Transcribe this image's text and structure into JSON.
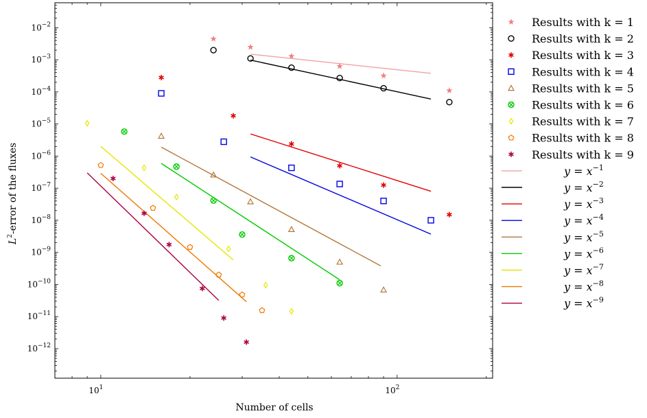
{
  "chart_data": {
    "type": "scatter",
    "xscale": "log",
    "yscale": "log",
    "xlim": [
      7.0,
      210.0
    ],
    "ylim": [
      1.2e-13,
      0.06
    ],
    "xlabel": "Number of cells",
    "ylabel": "L2-error of the fluxes",
    "ylabel_parts": {
      "L": "L",
      "sup": "2",
      "rest": "-error of the fluxes"
    },
    "xticks": [
      {
        "value": 10,
        "base": "10",
        "exp": "1"
      },
      {
        "value": 100,
        "base": "10",
        "exp": "2"
      }
    ],
    "yticks": [
      {
        "value": 1e-12,
        "base": "10",
        "exp": "−12"
      },
      {
        "value": 1e-11,
        "base": "10",
        "exp": "−11"
      },
      {
        "value": 1e-10,
        "base": "10",
        "exp": "−10"
      },
      {
        "value": 1e-09,
        "base": "10",
        "exp": "−9"
      },
      {
        "value": 1e-08,
        "base": "10",
        "exp": "−8"
      },
      {
        "value": 1e-07,
        "base": "10",
        "exp": "−7"
      },
      {
        "value": 1e-06,
        "base": "10",
        "exp": "−6"
      },
      {
        "value": 1e-05,
        "base": "10",
        "exp": "−5"
      },
      {
        "value": 0.0001,
        "base": "10",
        "exp": "−4"
      },
      {
        "value": 0.001,
        "base": "10",
        "exp": "−3"
      },
      {
        "value": 0.01,
        "base": "10",
        "exp": "−2"
      }
    ],
    "legend_position": "outside-right",
    "series": [
      {
        "name": "Results with k = 1",
        "marker": "star",
        "color": "#f08080",
        "points": [
          [
            24,
            0.0045
          ],
          [
            32,
            0.0025
          ],
          [
            44,
            0.0013
          ],
          [
            64,
            0.00063
          ],
          [
            90,
            0.00032
          ],
          [
            150,
            0.00011
          ]
        ]
      },
      {
        "name": "Results with k = 2",
        "marker": "circle",
        "color": "#000000",
        "points": [
          [
            24,
            0.002
          ],
          [
            32,
            0.0011
          ],
          [
            44,
            0.00057
          ],
          [
            64,
            0.00027
          ],
          [
            90,
            0.00013
          ],
          [
            150,
            4.8e-05
          ]
        ]
      },
      {
        "name": "Results with k = 3",
        "marker": "asterisk",
        "color": "#e00000",
        "points": [
          [
            16,
            0.00028
          ],
          [
            28,
            1.8e-05
          ],
          [
            44,
            2.4e-06
          ],
          [
            64,
            5e-07
          ],
          [
            90,
            1.25e-07
          ],
          [
            150,
            1.5e-08
          ]
        ]
      },
      {
        "name": "Results with k = 4",
        "marker": "square",
        "color": "#0000e0",
        "points": [
          [
            16,
            9e-05
          ],
          [
            26,
            2.8e-06
          ],
          [
            44,
            4.3e-07
          ],
          [
            64,
            1.35e-07
          ],
          [
            90,
            4e-08
          ],
          [
            130,
            1e-08
          ]
        ]
      },
      {
        "name": "Results with k = 5",
        "marker": "triangle",
        "color": "#b5773a",
        "points": [
          [
            16,
            4.2e-06
          ],
          [
            24,
            2.6e-07
          ],
          [
            32,
            3.8e-08
          ],
          [
            44,
            5.2e-09
          ],
          [
            64,
            5e-10
          ],
          [
            90,
            6.8e-11
          ]
        ]
      },
      {
        "name": "Results with k = 6",
        "marker": "otimes",
        "color": "#00cc00",
        "points": [
          [
            12,
            5.8e-06
          ],
          [
            18,
            4.7e-07
          ],
          [
            24,
            4.1e-08
          ],
          [
            30,
            3.6e-09
          ],
          [
            44,
            6.6e-10
          ],
          [
            64,
            1.1e-10
          ]
        ]
      },
      {
        "name": "Results with k = 7",
        "marker": "diamond",
        "color": "#e6e600",
        "points": [
          [
            9,
            1.05e-05
          ],
          [
            14,
            4.3e-07
          ],
          [
            18,
            5.3e-08
          ],
          [
            27,
            1.3e-09
          ],
          [
            36,
            9.5e-11
          ],
          [
            44,
            1.45e-11
          ]
        ]
      },
      {
        "name": "Results with k = 8",
        "marker": "pentagon",
        "color": "#f07800",
        "points": [
          [
            10,
            5.2e-07
          ],
          [
            15,
            2.4e-08
          ],
          [
            20,
            1.45e-09
          ],
          [
            25,
            2e-10
          ],
          [
            30,
            4.8e-11
          ],
          [
            35,
            1.55e-11
          ]
        ]
      },
      {
        "name": "Results with k = 9",
        "marker": "asterisk",
        "color": "#aa0044",
        "points": [
          [
            11,
            2e-07
          ],
          [
            14,
            1.65e-08
          ],
          [
            17,
            1.75e-09
          ],
          [
            22,
            7.5e-11
          ],
          [
            26,
            9e-12
          ],
          [
            31,
            1.6e-12
          ]
        ]
      }
    ],
    "reference_lines": [
      {
        "label_prefix": "y = x",
        "exp": "−1",
        "power": -1,
        "color": "#f4a0a0",
        "x": [
          32,
          130
        ],
        "y": [
          0.0015,
          0.00038
        ]
      },
      {
        "label_prefix": "y = x",
        "exp": "−2",
        "power": -2,
        "color": "#000000",
        "x": [
          32,
          130
        ],
        "y": [
          0.00098,
          6e-05
        ]
      },
      {
        "label_prefix": "y = x",
        "exp": "−3",
        "power": -3,
        "color": "#e00000",
        "x": [
          32,
          130
        ],
        "y": [
          4.9e-06,
          8e-08
        ]
      },
      {
        "label_prefix": "y = x",
        "exp": "−4",
        "power": -4,
        "color": "#0000e0",
        "x": [
          32,
          130
        ],
        "y": [
          9.4e-07,
          3.7e-09
        ]
      },
      {
        "label_prefix": "y = x",
        "exp": "−5",
        "power": -5,
        "color": "#b5773a",
        "x": [
          16,
          88
        ],
        "y": [
          1.9e-06,
          3.8e-10
        ]
      },
      {
        "label_prefix": "y = x",
        "exp": "−6",
        "power": -6,
        "color": "#00cc00",
        "x": [
          16,
          64
        ],
        "y": [
          5.9e-07,
          1.4e-10
        ]
      },
      {
        "label_prefix": "y = x",
        "exp": "−7",
        "power": -7,
        "color": "#e6e600",
        "x": [
          10,
          28
        ],
        "y": [
          2e-06,
          5.8e-10
        ]
      },
      {
        "label_prefix": "y = x",
        "exp": "−8",
        "power": -8,
        "color": "#f07800",
        "x": [
          10,
          31
        ],
        "y": [
          2.9e-07,
          2.9e-11
        ]
      },
      {
        "label_prefix": "y = x",
        "exp": "−9",
        "power": -9,
        "color": "#aa0044",
        "x": [
          9,
          25
        ],
        "y": [
          3e-07,
          3.2e-11
        ]
      }
    ]
  }
}
